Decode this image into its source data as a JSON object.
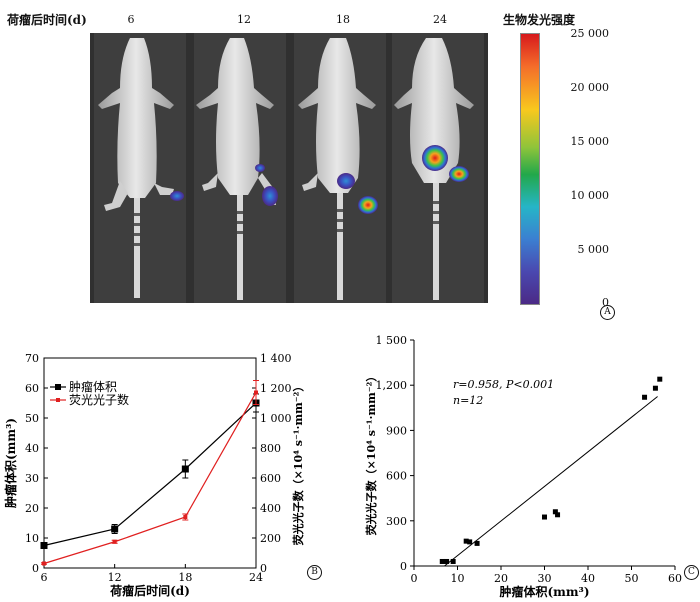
{
  "panel_a": {
    "time_header": "荷瘤后时间(d)",
    "days": [
      "6",
      "12",
      "18",
      "24"
    ],
    "colorbar_title": "生物发光强度",
    "colorbar_ticks": [
      "25 000",
      "20 000",
      "15 000",
      "10 000",
      "5 000",
      "0"
    ],
    "label": "A"
  },
  "panel_b": {
    "label": "B",
    "legend": [
      "肿瘤体积",
      "荧光光子数"
    ],
    "x_ticks": [
      "6",
      "12",
      "18",
      "24"
    ],
    "y_left_ticks": [
      "0",
      "10",
      "20",
      "30",
      "40",
      "50",
      "60",
      "70"
    ],
    "y_right_ticks": [
      "0",
      "200",
      "400",
      "600",
      "800",
      "1 000",
      "1 200",
      "1 400"
    ],
    "xlabel": "荷瘤后时间(d)",
    "ylabel_left": "肿瘤体积(mm³)",
    "ylabel_right": "荧光光子数（×10⁴ s⁻¹·mm⁻²）"
  },
  "panel_c": {
    "label": "C",
    "annotation_line1": "r=0.958, P<0.001",
    "annotation_line2": "n=12",
    "x_ticks": [
      "0",
      "10",
      "20",
      "30",
      "40",
      "50",
      "60"
    ],
    "y_ticks": [
      "0",
      "300",
      "600",
      "900",
      "1,200",
      "1 500"
    ],
    "xlabel": "肿瘤体积(mm³)",
    "ylabel": "荧光光子数（×10⁴ s⁻¹·mm⁻²）"
  },
  "chart_data": [
    {
      "type": "line",
      "x": [
        6,
        12,
        18,
        24
      ],
      "xlabel": "荷瘤后时间(d)",
      "xlim": [
        6,
        24
      ],
      "series": [
        {
          "name": "肿瘤体积",
          "axis": "left",
          "values": [
            7.5,
            13,
            33,
            55
          ],
          "errors": [
            0.8,
            1.5,
            3,
            3
          ],
          "color": "#000000",
          "marker": "square"
        },
        {
          "name": "荧光光子数",
          "axis": "right",
          "values": [
            30,
            175,
            340,
            1170
          ],
          "errors": [
            5,
            10,
            20,
            80
          ],
          "color": "#e02020",
          "marker": "square"
        }
      ],
      "ylabel_left": "肿瘤体积(mm³)",
      "ylim_left": [
        0,
        70
      ],
      "ylabel_right": "荧光光子数（×10⁴ s⁻¹·mm⁻²）",
      "ylim_right": [
        0,
        1400
      ]
    },
    {
      "type": "scatter",
      "xlabel": "肿瘤体积(mm³)",
      "ylabel": "荧光光子数（×10⁴ s⁻¹·mm⁻²）",
      "xlim": [
        0,
        60
      ],
      "ylim": [
        0,
        1500
      ],
      "points": [
        [
          6.5,
          30
        ],
        [
          7.5,
          30
        ],
        [
          9,
          30
        ],
        [
          12,
          165
        ],
        [
          12.8,
          160
        ],
        [
          14.5,
          150
        ],
        [
          30,
          325
        ],
        [
          32.5,
          360
        ],
        [
          33,
          340
        ],
        [
          53,
          1120
        ],
        [
          55.5,
          1180
        ],
        [
          56.5,
          1240
        ]
      ],
      "fit_line": [
        [
          7,
          0
        ],
        [
          56,
          1125
        ]
      ]
    }
  ]
}
